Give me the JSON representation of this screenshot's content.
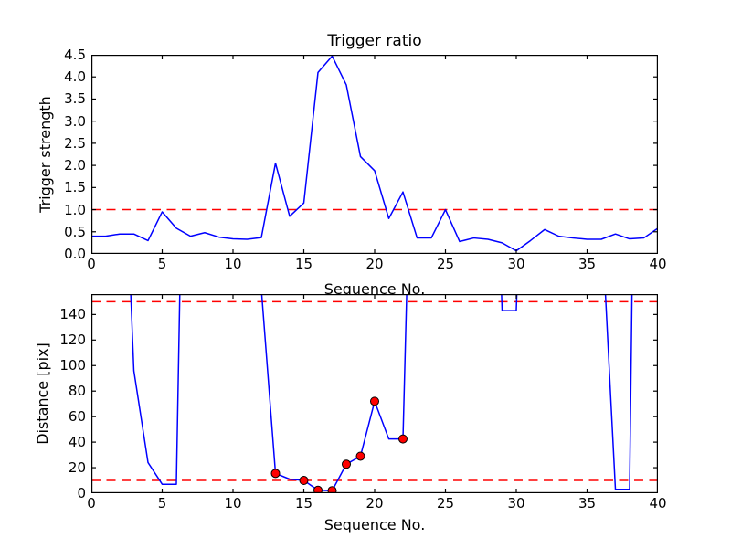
{
  "figure": {
    "background": "#ffffff"
  },
  "styles": {
    "line_color": "#0000ff",
    "threshold_color": "#ff0000",
    "marker_face_color": "#ff0000",
    "marker_edge_color": "#000000",
    "axes_color": "#000000",
    "text_color": "#000000"
  },
  "chart_data": [
    {
      "id": "trigger",
      "type": "line",
      "title": "Trigger ratio",
      "xlabel": "Sequence No.",
      "ylabel": "Trigger strength",
      "xlim": [
        0,
        40
      ],
      "ylim": [
        0,
        4.5
      ],
      "grid": false,
      "legend": null,
      "xticks": [
        0,
        5,
        10,
        15,
        20,
        25,
        30,
        35,
        40
      ],
      "xtick_labels": [
        "0",
        "5",
        "10",
        "15",
        "20",
        "25",
        "30",
        "35",
        "40"
      ],
      "yticks": [
        0,
        0.5,
        1,
        1.5,
        2,
        2.5,
        3,
        3.5,
        4,
        4.5
      ],
      "ytick_labels": [
        "0.0",
        "0.5",
        "1.0",
        "1.5",
        "2.0",
        "2.5",
        "3.0",
        "3.5",
        "4.0",
        "4.5"
      ],
      "thresholds": [
        1.0
      ],
      "x": [
        0,
        1,
        2,
        3,
        4,
        5,
        6,
        7,
        8,
        9,
        10,
        11,
        12,
        13,
        14,
        15,
        16,
        17,
        18,
        19,
        20,
        21,
        22,
        23,
        24,
        25,
        26,
        27,
        28,
        29,
        30,
        31,
        32,
        33,
        34,
        35,
        36,
        37,
        38,
        39,
        40
      ],
      "y": [
        0.4,
        0.4,
        0.45,
        0.45,
        0.3,
        0.95,
        0.58,
        0.4,
        0.48,
        0.38,
        0.34,
        0.33,
        0.37,
        2.05,
        0.85,
        1.15,
        4.1,
        4.47,
        3.82,
        2.2,
        1.88,
        0.8,
        1.4,
        0.36,
        0.36,
        1.0,
        0.28,
        0.36,
        0.33,
        0.25,
        0.07,
        0.3,
        0.55,
        0.4,
        0.36,
        0.33,
        0.33,
        0.45,
        0.34,
        0.36,
        0.58
      ]
    },
    {
      "id": "distance",
      "type": "line",
      "title": "",
      "xlabel": "Sequence No.",
      "ylabel": "Distance [pix]",
      "xlim": [
        0,
        40
      ],
      "ylim": [
        0,
        156
      ],
      "grid": false,
      "legend": null,
      "offscale_note": "y values above ylim max run off the top of the axes (clipped)",
      "xticks": [
        0,
        5,
        10,
        15,
        20,
        25,
        30,
        35,
        40
      ],
      "xtick_labels": [
        "0",
        "5",
        "10",
        "15",
        "20",
        "25",
        "30",
        "35",
        "40"
      ],
      "yticks": [
        0,
        20,
        40,
        60,
        80,
        100,
        120,
        140
      ],
      "ytick_labels": [
        "0",
        "20",
        "40",
        "60",
        "80",
        "100",
        "120",
        "140"
      ],
      "thresholds": [
        150,
        10
      ],
      "x": [
        0,
        1,
        2,
        3,
        4,
        5,
        6,
        7,
        8,
        9,
        10,
        11,
        12,
        13,
        14,
        15,
        16,
        17,
        18,
        19,
        20,
        21,
        22,
        23,
        24,
        25,
        26,
        27,
        28,
        29,
        30,
        31,
        32,
        33,
        34,
        35,
        36,
        37,
        38,
        39,
        40
      ],
      "y": [
        400,
        400,
        370,
        96,
        24,
        7,
        7,
        620,
        620,
        620,
        620,
        620,
        160,
        15.5,
        11,
        10,
        2.3,
        2,
        22.7,
        29,
        72,
        42.5,
        42.5,
        475,
        475,
        475,
        475,
        475,
        475,
        143,
        143,
        475,
        475,
        475,
        475,
        475,
        220,
        3,
        3,
        900,
        900
      ],
      "markers": {
        "x": [
          13,
          15,
          16,
          17,
          18,
          19,
          20,
          22
        ],
        "y": [
          15.5,
          10,
          2.3,
          2,
          22.7,
          29,
          72,
          42.5
        ]
      }
    }
  ]
}
